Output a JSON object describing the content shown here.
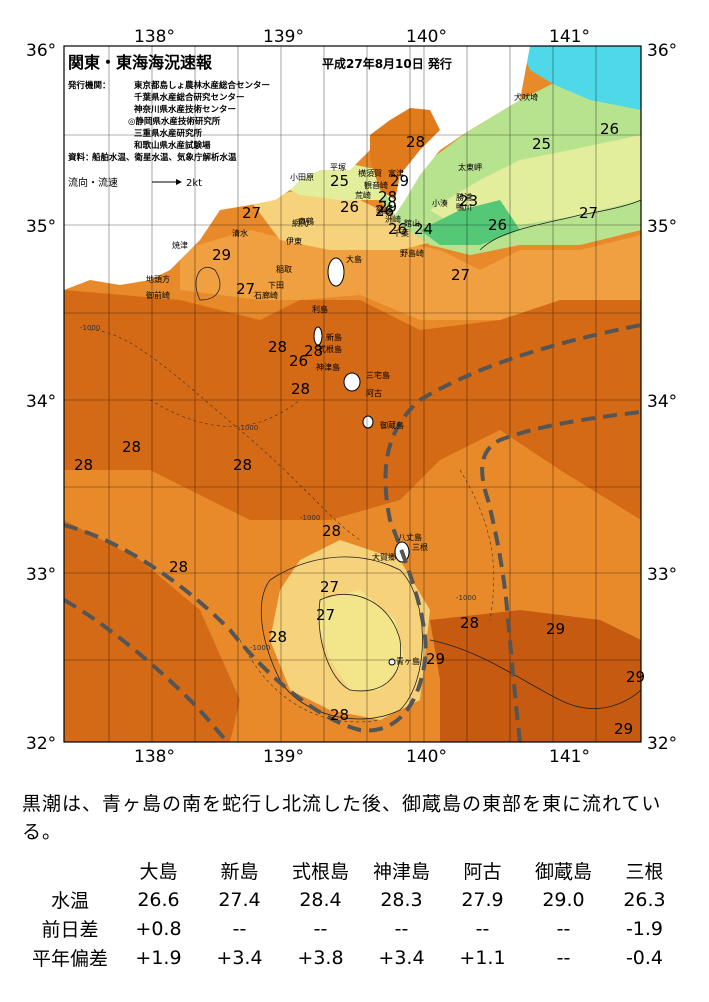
{
  "header": {
    "title": "関東・東海海況速報",
    "issued": "平成27年8月10日 発行",
    "issuer_label": "発行機関：",
    "issuers": [
      "東京都島しょ農林水産総合センター",
      "千葉県水産総合研究センター",
      "神奈川県水産技術センター",
      "◎静岡県水産技術研究所",
      "三重県水産研究所",
      "和歌山県水産試験場"
    ],
    "source_label": "資料：",
    "source": "船舶水温、衛星水温、気象庁解析水温",
    "current_label": "流向・流速",
    "current_scale": "2kt"
  },
  "axes": {
    "lon_labels": [
      "138°",
      "139°",
      "140°",
      "141°"
    ],
    "lat_labels": [
      "36°",
      "35°",
      "34°",
      "33°",
      "32°"
    ]
  },
  "map": {
    "temp_labels": [
      "25",
      "26",
      "26",
      "28",
      "29",
      "28",
      "29",
      "26",
      "23",
      "25",
      "26",
      "27",
      "27",
      "26",
      "27",
      "29",
      "27",
      "28",
      "26",
      "28",
      "28",
      "28",
      "28",
      "28",
      "28",
      "28",
      "27",
      "27",
      "28",
      "28",
      "29",
      "29",
      "29",
      "28",
      "29",
      "24"
    ],
    "places": [
      "犬吠埼",
      "太東岬",
      "勝浦",
      "小湊",
      "鴨川",
      "千葉",
      "洲崎",
      "野島崎",
      "館山",
      "富津",
      "観音崎",
      "横須賀",
      "平塚",
      "小田原",
      "荒崎",
      "剱崎",
      "真鶴",
      "伊東",
      "大島",
      "網代",
      "稲取",
      "下田",
      "石廊崎",
      "御前崎",
      "焼津",
      "清水",
      "利島",
      "新島",
      "式根島",
      "神津島",
      "三宅島",
      "阿古",
      "御蔵島",
      "八丈島",
      "三根",
      "大賀郷",
      "青ヶ島",
      "地頭方"
    ],
    "depth_label": "-1000",
    "colors": {
      "land": "#ffffff",
      "t23": "#55c878",
      "t24": "#8ad27a",
      "t25": "#b8e38e",
      "t26": "#e2ee9c",
      "t27": "#f6d27a",
      "t28": "#f0a040",
      "t29": "#e07a1a",
      "t30": "#c55a10",
      "kuroshio": "#555555",
      "cyan": "#4fd8e8"
    }
  },
  "summary": "黒潮は、青ヶ島の南を蛇行し北流した後、御蔵島の東部を東に流れている。",
  "table": {
    "columns": [
      "大島",
      "新島",
      "式根島",
      "神津島",
      "阿古",
      "御蔵島",
      "三根"
    ],
    "rows": [
      {
        "label": "水温",
        "values": [
          "26.6",
          "27.4",
          "28.4",
          "28.3",
          "27.9",
          "29.0",
          "26.3"
        ]
      },
      {
        "label": "前日差",
        "values": [
          "+0.8",
          "--",
          "--",
          "--",
          "--",
          "--",
          "-1.9"
        ]
      },
      {
        "label": "平年偏差",
        "values": [
          "+1.9",
          "+3.4",
          "+3.8",
          "+3.4",
          "+1.1",
          "--",
          "-0.4"
        ]
      }
    ]
  }
}
